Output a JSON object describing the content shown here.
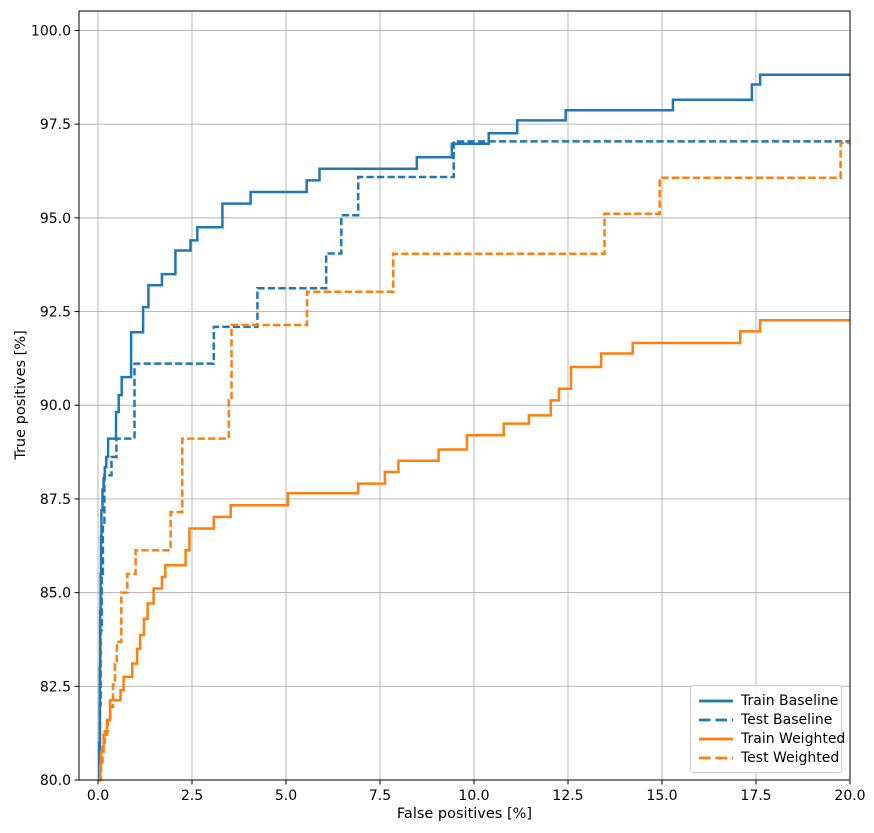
{
  "chart_data": {
    "type": "line",
    "step": "post",
    "title": "",
    "xlabel": "False positives [%]",
    "ylabel": "True positives [%]",
    "xlim": [
      -0.505,
      20.0
    ],
    "ylim": [
      80.0,
      100.52
    ],
    "grid": true,
    "grid_color": "#b0b0b0",
    "legend_position": "lower right",
    "xticks": {
      "values": [
        0,
        2.5,
        5,
        7.5,
        10,
        12.5,
        15,
        17.5,
        20
      ],
      "labels": [
        "0.0",
        "2.5",
        "5.0",
        "7.5",
        "10.0",
        "12.5",
        "15.0",
        "17.5",
        "20.0"
      ]
    },
    "yticks": {
      "values": [
        80,
        82.5,
        85,
        87.5,
        90,
        92.5,
        95,
        97.5,
        100
      ],
      "labels": [
        "80.0",
        "82.5",
        "85.0",
        "87.5",
        "90.0",
        "92.5",
        "95.0",
        "97.5",
        "100.0"
      ]
    },
    "series": [
      {
        "name": "Train Baseline",
        "color": "#1f77b4",
        "style": "solid",
        "points": [
          [
            0,
            80
          ],
          [
            0.03,
            81
          ],
          [
            0.05,
            83
          ],
          [
            0.06,
            84.5
          ],
          [
            0.07,
            85.5
          ],
          [
            0.08,
            86.5
          ],
          [
            0.09,
            87.2
          ],
          [
            0.12,
            87.75
          ],
          [
            0.15,
            88.05
          ],
          [
            0.18,
            88.35
          ],
          [
            0.22,
            88.62
          ],
          [
            0.27,
            89.11
          ],
          [
            0.48,
            89.82
          ],
          [
            0.55,
            90.27
          ],
          [
            0.63,
            90.75
          ],
          [
            0.88,
            91.95
          ],
          [
            1.2,
            92.62
          ],
          [
            1.34,
            93.2
          ],
          [
            1.7,
            93.5
          ],
          [
            2.06,
            94.13
          ],
          [
            2.46,
            94.4
          ],
          [
            2.64,
            94.75
          ],
          [
            3.31,
            95.38
          ],
          [
            4.06,
            95.69
          ],
          [
            5.55,
            96.0
          ],
          [
            5.89,
            96.31
          ],
          [
            8.48,
            96.62
          ],
          [
            9.41,
            96.98
          ],
          [
            10.39,
            97.26
          ],
          [
            11.15,
            97.6
          ],
          [
            12.44,
            97.87
          ],
          [
            15.29,
            98.15
          ],
          [
            17.39,
            98.56
          ],
          [
            17.61,
            98.82
          ],
          [
            20,
            98.82
          ]
        ]
      },
      {
        "name": "Test Baseline",
        "color": "#1f77b4",
        "style": "dashed",
        "points": [
          [
            0,
            80
          ],
          [
            0.05,
            82
          ],
          [
            0.07,
            84
          ],
          [
            0.1,
            85.5
          ],
          [
            0.13,
            86.8
          ],
          [
            0.17,
            88.13
          ],
          [
            0.36,
            88.62
          ],
          [
            0.49,
            89.11
          ],
          [
            0.97,
            91.11
          ],
          [
            3.08,
            92.09
          ],
          [
            4.24,
            93.12
          ],
          [
            6.07,
            94.05
          ],
          [
            6.47,
            95.07
          ],
          [
            6.92,
            96.09
          ],
          [
            9.46,
            97.04
          ],
          [
            20,
            97.04
          ]
        ]
      },
      {
        "name": "Train Weighted",
        "color": "#ff7f0e",
        "style": "solid",
        "points": [
          [
            0,
            80
          ],
          [
            0.06,
            80.4
          ],
          [
            0.08,
            80.75
          ],
          [
            0.15,
            81.2
          ],
          [
            0.24,
            81.6
          ],
          [
            0.32,
            82.13
          ],
          [
            0.6,
            82.4
          ],
          [
            0.68,
            82.75
          ],
          [
            0.91,
            83.11
          ],
          [
            1.04,
            83.5
          ],
          [
            1.12,
            83.87
          ],
          [
            1.22,
            84.3
          ],
          [
            1.32,
            84.71
          ],
          [
            1.48,
            85.11
          ],
          [
            1.7,
            85.42
          ],
          [
            1.79,
            85.73
          ],
          [
            2.33,
            86.13
          ],
          [
            2.43,
            86.71
          ],
          [
            3.08,
            87.02
          ],
          [
            3.53,
            87.33
          ],
          [
            5.05,
            87.65
          ],
          [
            6.92,
            87.91
          ],
          [
            7.63,
            88.22
          ],
          [
            7.99,
            88.52
          ],
          [
            9.06,
            88.82
          ],
          [
            9.81,
            89.2
          ],
          [
            10.79,
            89.51
          ],
          [
            11.46,
            89.73
          ],
          [
            12.04,
            90.13
          ],
          [
            12.26,
            90.44
          ],
          [
            12.58,
            91.02
          ],
          [
            13.38,
            91.38
          ],
          [
            14.22,
            91.66
          ],
          [
            17.08,
            91.97
          ],
          [
            17.61,
            92.27
          ],
          [
            20,
            92.27
          ]
        ]
      },
      {
        "name": "Test Weighted",
        "color": "#ff7f0e",
        "style": "dashed",
        "points": [
          [
            0,
            80
          ],
          [
            0.08,
            80.4
          ],
          [
            0.12,
            81.0
          ],
          [
            0.18,
            81.3
          ],
          [
            0.26,
            81.6
          ],
          [
            0.33,
            81.95
          ],
          [
            0.4,
            82.55
          ],
          [
            0.45,
            83.1
          ],
          [
            0.5,
            83.69
          ],
          [
            0.62,
            85.0
          ],
          [
            0.78,
            85.5
          ],
          [
            1.0,
            86.13
          ],
          [
            1.93,
            87.15
          ],
          [
            2.24,
            89.11
          ],
          [
            3.48,
            90.13
          ],
          [
            3.55,
            92.14
          ],
          [
            5.56,
            93.03
          ],
          [
            7.85,
            94.04
          ],
          [
            13.47,
            95.11
          ],
          [
            14.94,
            96.07
          ],
          [
            19.75,
            97.0
          ],
          [
            20,
            97.0
          ]
        ]
      }
    ]
  }
}
